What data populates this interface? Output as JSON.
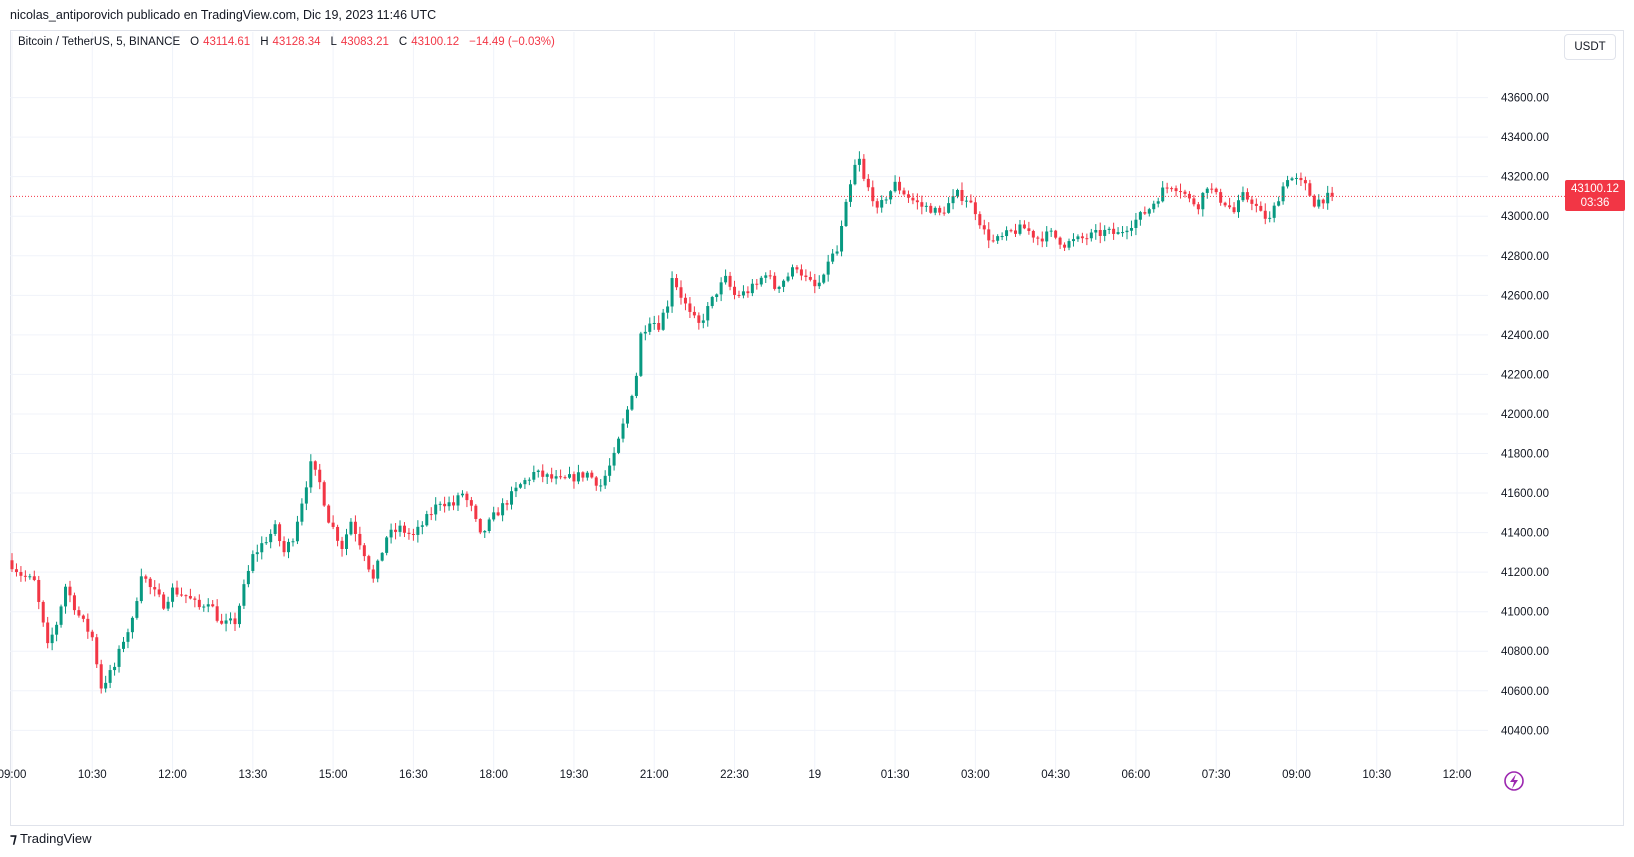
{
  "header": {
    "published_by": "nicolas_antiporovich publicado en TradingView.com, Dic 19, 2023 11:46 UTC"
  },
  "legend": {
    "symbol": "Bitcoin / TetherUS, 5, BINANCE",
    "o_label": "O",
    "o_value": "43114.61",
    "h_label": "H",
    "h_value": "43128.34",
    "l_label": "L",
    "l_value": "43083.21",
    "c_label": "C",
    "c_value": "43100.12",
    "change": "−14.49 (−0.03%)"
  },
  "currency_button": "USDT",
  "price_tag": {
    "price": "43100.12",
    "countdown": "03:36"
  },
  "footer": {
    "logo_glyph": "⁊",
    "brand": "TradingView"
  },
  "colors": {
    "up": "#089981",
    "down": "#f23645",
    "grid": "#f0f3fa",
    "text": "#131722",
    "lightning": "#9c27b0"
  },
  "icons": [
    "lightning-icon",
    "tradingview-logo-icon"
  ],
  "chart_data": {
    "type": "candlestick",
    "y_ticks": [
      "43600.00",
      "43400.00",
      "43200.00",
      "43000.00",
      "42800.00",
      "42600.00",
      "42400.00",
      "42200.00",
      "42000.00",
      "41800.00",
      "41600.00",
      "41400.00",
      "41200.00",
      "41000.00",
      "40800.00",
      "40600.00",
      "40400.00"
    ],
    "ylim": [
      40250,
      43780
    ],
    "x_ticks": [
      "09:00",
      "10:30",
      "12:00",
      "13:30",
      "15:00",
      "16:30",
      "18:00",
      "19:30",
      "21:00",
      "22:30",
      "19",
      "01:30",
      "03:00",
      "04:30",
      "06:00",
      "07:30",
      "09:00",
      "10:30",
      "12:00"
    ],
    "x_tick_positions": [
      0,
      18,
      36,
      54,
      72,
      90,
      108,
      126,
      144,
      162,
      180,
      198,
      216,
      234,
      252,
      270,
      288,
      306,
      324
    ],
    "last_price": 43100.12,
    "grid": true,
    "path_points": [
      [
        0,
        41240
      ],
      [
        2,
        41190
      ],
      [
        5,
        41150
      ],
      [
        8,
        40820
      ],
      [
        10,
        40940
      ],
      [
        12,
        41130
      ],
      [
        15,
        40980
      ],
      [
        18,
        40870
      ],
      [
        20,
        40620
      ],
      [
        23,
        40720
      ],
      [
        25,
        40860
      ],
      [
        27,
        40950
      ],
      [
        29,
        41200
      ],
      [
        31,
        41120
      ],
      [
        34,
        41040
      ],
      [
        36,
        41110
      ],
      [
        39,
        41080
      ],
      [
        42,
        41020
      ],
      [
        44,
        41060
      ],
      [
        47,
        40930
      ],
      [
        50,
        40950
      ],
      [
        52,
        41120
      ],
      [
        54,
        41280
      ],
      [
        56,
        41340
      ],
      [
        59,
        41420
      ],
      [
        61,
        41300
      ],
      [
        63,
        41380
      ],
      [
        65,
        41560
      ],
      [
        67,
        41740
      ],
      [
        69,
        41650
      ],
      [
        71,
        41470
      ],
      [
        74,
        41330
      ],
      [
        76,
        41460
      ],
      [
        79,
        41300
      ],
      [
        81,
        41160
      ],
      [
        84,
        41380
      ],
      [
        87,
        41420
      ],
      [
        90,
        41380
      ],
      [
        93,
        41470
      ],
      [
        96,
        41560
      ],
      [
        99,
        41540
      ],
      [
        101,
        41600
      ],
      [
        103,
        41520
      ],
      [
        105,
        41380
      ],
      [
        108,
        41480
      ],
      [
        111,
        41560
      ],
      [
        114,
        41640
      ],
      [
        117,
        41700
      ],
      [
        120,
        41680
      ],
      [
        123,
        41660
      ],
      [
        126,
        41680
      ],
      [
        129,
        41700
      ],
      [
        132,
        41640
      ],
      [
        135,
        41780
      ],
      [
        138,
        42020
      ],
      [
        140,
        42200
      ],
      [
        141,
        42400
      ],
      [
        143,
        42480
      ],
      [
        145,
        42450
      ],
      [
        147,
        42560
      ],
      [
        148,
        42700
      ],
      [
        150,
        42600
      ],
      [
        152,
        42500
      ],
      [
        154,
        42450
      ],
      [
        156,
        42530
      ],
      [
        158,
        42620
      ],
      [
        160,
        42680
      ],
      [
        162,
        42600
      ],
      [
        164,
        42610
      ],
      [
        167,
        42650
      ],
      [
        169,
        42720
      ],
      [
        171,
        42640
      ],
      [
        174,
        42700
      ],
      [
        176,
        42750
      ],
      [
        178,
        42680
      ],
      [
        180,
        42640
      ],
      [
        182,
        42680
      ],
      [
        183,
        42780
      ],
      [
        185,
        42820
      ],
      [
        187,
        43050
      ],
      [
        189,
        43250
      ],
      [
        190,
        43280
      ],
      [
        191,
        43180
      ],
      [
        193,
        43100
      ],
      [
        194,
        43020
      ],
      [
        196,
        43100
      ],
      [
        198,
        43160
      ],
      [
        200,
        43120
      ],
      [
        202,
        43080
      ],
      [
        204,
        43050
      ],
      [
        206,
        43040
      ],
      [
        208,
        43010
      ],
      [
        210,
        43060
      ],
      [
        212,
        43110
      ],
      [
        214,
        43090
      ],
      [
        216,
        43030
      ],
      [
        218,
        42920
      ],
      [
        220,
        42870
      ],
      [
        222,
        42890
      ],
      [
        224,
        42920
      ],
      [
        227,
        42940
      ],
      [
        230,
        42890
      ],
      [
        233,
        42910
      ],
      [
        236,
        42860
      ],
      [
        239,
        42880
      ],
      [
        242,
        42900
      ],
      [
        245,
        42920
      ],
      [
        248,
        42910
      ],
      [
        250,
        42950
      ],
      [
        252,
        42980
      ],
      [
        255,
        43040
      ],
      [
        258,
        43130
      ],
      [
        260,
        43160
      ],
      [
        262,
        43140
      ],
      [
        264,
        43080
      ],
      [
        266,
        43060
      ],
      [
        268,
        43160
      ],
      [
        270,
        43100
      ],
      [
        272,
        43070
      ],
      [
        274,
        43020
      ],
      [
        276,
        43100
      ],
      [
        278,
        43080
      ],
      [
        280,
        43010
      ],
      [
        282,
        42980
      ],
      [
        284,
        43100
      ],
      [
        286,
        43200
      ],
      [
        288,
        43180
      ],
      [
        290,
        43150
      ],
      [
        292,
        43070
      ],
      [
        294,
        43090
      ],
      [
        296,
        43100
      ]
    ]
  }
}
